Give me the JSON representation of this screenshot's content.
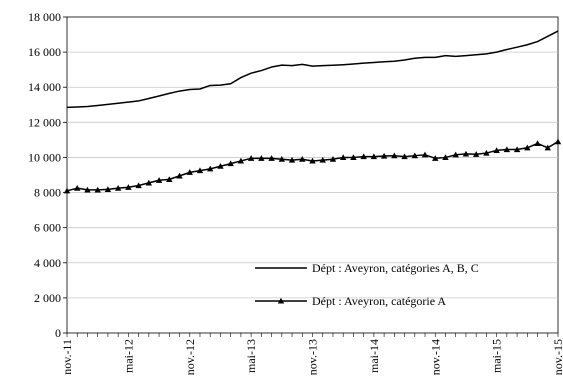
{
  "chart_data": {
    "type": "line",
    "title": "",
    "xlabel": "",
    "ylabel": "",
    "ylim": [
      0,
      18000
    ],
    "y_ticks": [
      0,
      2000,
      4000,
      6000,
      8000,
      10000,
      12000,
      14000,
      16000,
      18000
    ],
    "y_tick_labels": [
      "0",
      "2 000",
      "4 000",
      "6 000",
      "8 000",
      "10 000",
      "12 000",
      "14 000",
      "16 000",
      "18 000"
    ],
    "x_tick_labels": [
      "nov.-11",
      "mai-12",
      "nov.-12",
      "mai-13",
      "nov.-13",
      "mai-14",
      "nov.-14",
      "mai-15",
      "nov.-15"
    ],
    "grid": "horizontal",
    "legend_position": "lower-right",
    "x": [
      "2011-11",
      "2011-12",
      "2012-01",
      "2012-02",
      "2012-03",
      "2012-04",
      "2012-05",
      "2012-06",
      "2012-07",
      "2012-08",
      "2012-09",
      "2012-10",
      "2012-11",
      "2012-12",
      "2013-01",
      "2013-02",
      "2013-03",
      "2013-04",
      "2013-05",
      "2013-06",
      "2013-07",
      "2013-08",
      "2013-09",
      "2013-10",
      "2013-11",
      "2013-12",
      "2014-01",
      "2014-02",
      "2014-03",
      "2014-04",
      "2014-05",
      "2014-06",
      "2014-07",
      "2014-08",
      "2014-09",
      "2014-10",
      "2014-11",
      "2014-12",
      "2015-01",
      "2015-02",
      "2015-03",
      "2015-04",
      "2015-05",
      "2015-06",
      "2015-07",
      "2015-08",
      "2015-09",
      "2015-10",
      "2015-11"
    ],
    "series": [
      {
        "name": "Dépt : Aveyron, catégories A, B, C",
        "marker": "none",
        "color": "#000000",
        "values": [
          12850,
          12870,
          12900,
          12960,
          13020,
          13090,
          13150,
          13220,
          13360,
          13500,
          13650,
          13780,
          13870,
          13900,
          14100,
          14120,
          14200,
          14550,
          14800,
          14950,
          15150,
          15260,
          15230,
          15300,
          15200,
          15230,
          15250,
          15280,
          15320,
          15370,
          15410,
          15450,
          15480,
          15550,
          15650,
          15700,
          15700,
          15800,
          15760,
          15800,
          15850,
          15900,
          16000,
          16150,
          16280,
          16420,
          16600,
          16900,
          17200
        ]
      },
      {
        "name": "Dépt : Aveyron, catégorie A",
        "marker": "triangle",
        "color": "#000000",
        "values": [
          8100,
          8250,
          8150,
          8150,
          8180,
          8250,
          8300,
          8400,
          8550,
          8700,
          8750,
          8950,
          9150,
          9250,
          9350,
          9500,
          9650,
          9800,
          9950,
          9950,
          9950,
          9900,
          9850,
          9900,
          9800,
          9850,
          9900,
          10000,
          10000,
          10050,
          10050,
          10080,
          10100,
          10050,
          10100,
          10150,
          9950,
          10000,
          10150,
          10200,
          10180,
          10250,
          10400,
          10450,
          10450,
          10550,
          10800,
          10550,
          10900
        ]
      }
    ]
  }
}
